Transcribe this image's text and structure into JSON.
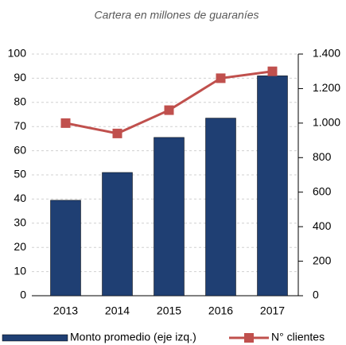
{
  "chart_data": {
    "type": "bar",
    "title": "Cartera en millones de guaraníes",
    "categories": [
      "2013",
      "2014",
      "2015",
      "2016",
      "2017"
    ],
    "series": [
      {
        "name": "Monto promedio (eje izq.)",
        "color": "#1f3f73",
        "values": [
          39.5,
          51,
          65.5,
          73.5,
          91
        ]
      },
      {
        "name": "N° clientes",
        "color": "#c0504d",
        "type": "line",
        "axis": "y2",
        "values": [
          1000,
          940,
          1075,
          1260,
          1300
        ]
      }
    ],
    "ylim": [
      0,
      100
    ],
    "yticks": [
      0,
      10,
      20,
      30,
      40,
      50,
      60,
      70,
      80,
      90,
      100
    ],
    "y2lim": [
      0,
      1400
    ],
    "y2ticks": [
      0,
      200,
      400,
      600,
      800,
      {
        "value": 1000,
        "label": "1.000"
      },
      {
        "value": 1200,
        "label": "1.200"
      },
      {
        "value": 1400,
        "label": "1.400"
      }
    ],
    "grid": true,
    "legend": "bottom"
  }
}
